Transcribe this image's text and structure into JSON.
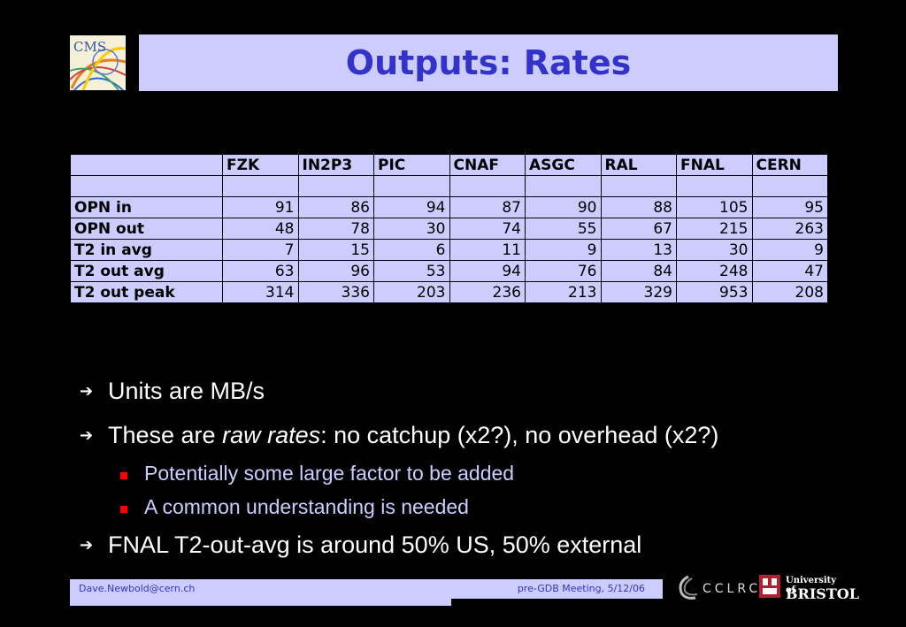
{
  "title": "Outputs: Rates",
  "logos": {
    "cms": "CMS",
    "cclrc": "CCLRC",
    "bristol_line1": "University of",
    "bristol_line2": "BRISTOL"
  },
  "table": {
    "columns": [
      "FZK",
      "IN2P3",
      "PIC",
      "CNAF",
      "ASGC",
      "RAL",
      "FNAL",
      "CERN"
    ],
    "rows": [
      {
        "label": "OPN in",
        "values": [
          "91",
          "86",
          "94",
          "87",
          "90",
          "88",
          "105",
          "95"
        ]
      },
      {
        "label": "OPN out",
        "values": [
          "48",
          "78",
          "30",
          "74",
          "55",
          "67",
          "215",
          "263"
        ]
      },
      {
        "label": "T2 in avg",
        "values": [
          "7",
          "15",
          "6",
          "11",
          "9",
          "13",
          "30",
          "9"
        ]
      },
      {
        "label": "T2 out avg",
        "values": [
          "63",
          "96",
          "53",
          "94",
          "76",
          "84",
          "248",
          "47"
        ]
      },
      {
        "label": "T2 out peak",
        "values": [
          "314",
          "336",
          "203",
          "236",
          "213",
          "329",
          "953",
          "208"
        ]
      }
    ]
  },
  "bullets": {
    "b1": "Units are MB/s",
    "b2_prefix": "These are ",
    "b2_italic": "raw rates",
    "b2_suffix": ": no catchup (x2?), no overhead (x2?)",
    "sub1": "Potentially some large factor to be added",
    "sub2": "A common understanding is needed",
    "b3": "FNAL T2-out-avg is around 50% US, 50% external"
  },
  "footer": {
    "email": "Dave.Newbold@cern.ch",
    "meeting": "pre-GDB Meeting, 5/12/06"
  }
}
